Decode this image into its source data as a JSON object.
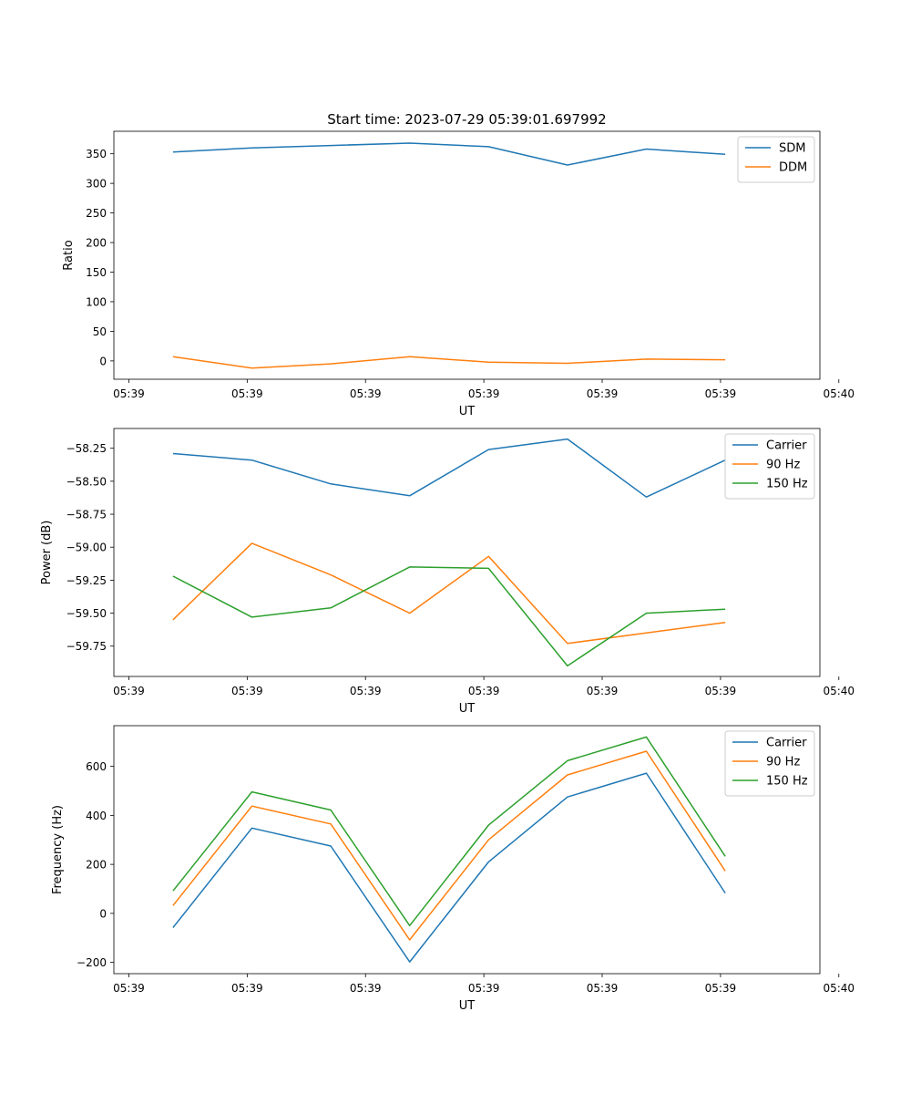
{
  "figure": {
    "suptitle": "Start time: 2023-07-29 05:39:01.697992"
  },
  "colors": {
    "blue": "#1f77b4",
    "orange": "#ff7f0e",
    "green": "#2ca02c"
  },
  "chart_data": [
    {
      "type": "line",
      "title": "Start time: 2023-07-29 05:39:01.697992",
      "xlabel": "UT",
      "ylabel": "Ratio",
      "x": [
        1.0,
        2.0,
        3.0,
        4.0,
        5.0,
        6.0,
        7.0,
        8.0
      ],
      "xlim": [
        0.25,
        9.2
      ],
      "x_ticks": [
        0.44,
        1.94,
        3.44,
        4.94,
        6.44,
        7.94,
        9.44
      ],
      "x_tick_labels": [
        "05:39",
        "05:39",
        "05:39",
        "05:39",
        "05:39",
        "05:39",
        "05:40"
      ],
      "ylim": [
        -31,
        388
      ],
      "y_ticks": [
        0,
        50,
        100,
        150,
        200,
        250,
        300,
        350
      ],
      "y_tick_labels": [
        "0",
        "50",
        "100",
        "150",
        "200",
        "250",
        "300",
        "350"
      ],
      "legend_position": "upper-right",
      "series": [
        {
          "name": "SDM",
          "color": "#1f77b4",
          "values": [
            353,
            360,
            364,
            368,
            362,
            331,
            358,
            349
          ]
        },
        {
          "name": "DDM",
          "color": "#ff7f0e",
          "values": [
            7,
            -12,
            -5,
            7,
            -2,
            -4,
            3,
            2
          ]
        }
      ]
    },
    {
      "type": "line",
      "xlabel": "UT",
      "ylabel": "Power (dB)",
      "x": [
        1.0,
        2.0,
        3.0,
        4.0,
        5.0,
        6.0,
        7.0,
        8.0
      ],
      "xlim": [
        0.25,
        9.2
      ],
      "x_ticks": [
        0.44,
        1.94,
        3.44,
        4.94,
        6.44,
        7.94,
        9.44
      ],
      "x_tick_labels": [
        "05:39",
        "05:39",
        "05:39",
        "05:39",
        "05:39",
        "05:39",
        "05:40"
      ],
      "ylim": [
        -59.98,
        -58.1
      ],
      "y_ticks": [
        -59.75,
        -59.5,
        -59.25,
        -59.0,
        -58.75,
        -58.5,
        -58.25
      ],
      "y_tick_labels": [
        "−59.75",
        "−59.50",
        "−59.25",
        "−59.00",
        "−58.75",
        "−58.50",
        "−58.25"
      ],
      "legend_position": "upper-right",
      "series": [
        {
          "name": "Carrier",
          "color": "#1f77b4",
          "values": [
            -58.29,
            -58.34,
            -58.52,
            -58.61,
            -58.26,
            -58.18,
            -58.62,
            -58.34
          ]
        },
        {
          "name": "90 Hz",
          "color": "#ff7f0e",
          "values": [
            -59.55,
            -58.97,
            -59.21,
            -59.5,
            -59.07,
            -59.73,
            -59.65,
            -59.57
          ]
        },
        {
          "name": "150 Hz",
          "color": "#2ca02c",
          "values": [
            -59.22,
            -59.53,
            -59.46,
            -59.15,
            -59.16,
            -59.9,
            -59.5,
            -59.47
          ]
        }
      ]
    },
    {
      "type": "line",
      "xlabel": "UT",
      "ylabel": "Frequency (Hz)",
      "x": [
        1.0,
        2.0,
        3.0,
        4.0,
        5.0,
        6.0,
        7.0,
        8.0
      ],
      "xlim": [
        0.25,
        9.2
      ],
      "x_ticks": [
        0.44,
        1.94,
        3.44,
        4.94,
        6.44,
        7.94,
        9.44
      ],
      "x_tick_labels": [
        "05:39",
        "05:39",
        "05:39",
        "05:39",
        "05:39",
        "05:39",
        "05:40"
      ],
      "ylim": [
        -246,
        766
      ],
      "y_ticks": [
        -200,
        0,
        200,
        400,
        600
      ],
      "y_tick_labels": [
        "−200",
        "0",
        "200",
        "400",
        "600"
      ],
      "legend_position": "upper-right",
      "series": [
        {
          "name": "Carrier",
          "color": "#1f77b4",
          "values": [
            -58,
            348,
            275,
            -198,
            210,
            475,
            572,
            83
          ]
        },
        {
          "name": "90 Hz",
          "color": "#ff7f0e",
          "values": [
            32,
            438,
            365,
            -108,
            300,
            565,
            662,
            173
          ]
        },
        {
          "name": "150 Hz",
          "color": "#2ca02c",
          "values": [
            92,
            496,
            422,
            -50,
            360,
            623,
            720,
            233
          ]
        }
      ]
    }
  ]
}
